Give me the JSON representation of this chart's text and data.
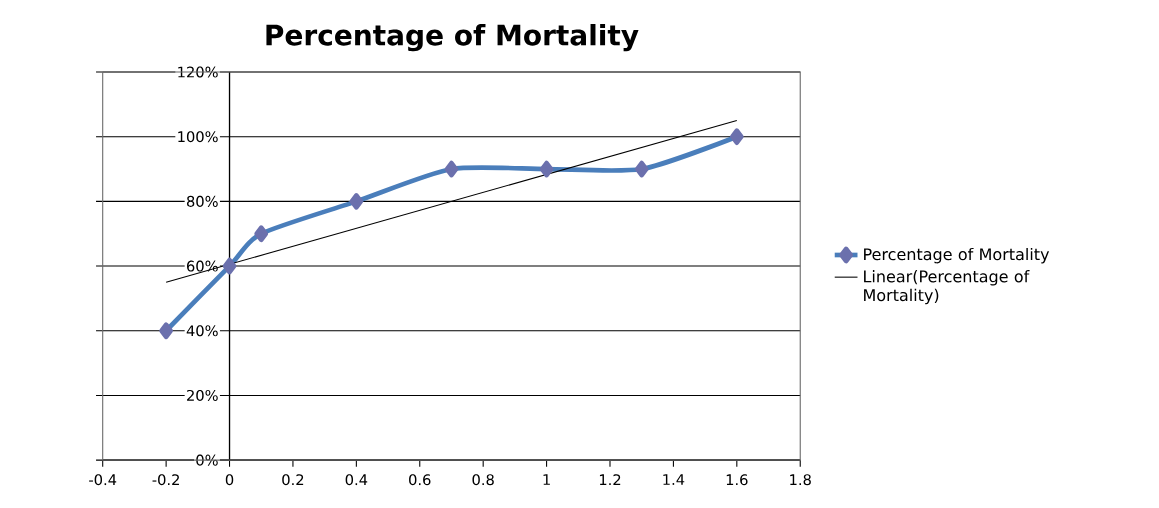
{
  "chart_data": {
    "type": "line",
    "title": "Percentage of Mortality",
    "x": [
      -0.2,
      0,
      0.1,
      0.4,
      0.7,
      1,
      1.3,
      1.6
    ],
    "series": [
      {
        "name": "Percentage of Mortality",
        "color": "#4a7ebb",
        "values": [
          40,
          60,
          70,
          80,
          90,
          90,
          90,
          100
        ]
      },
      {
        "name": "Linear(Percentage of Mortality)",
        "type": "line",
        "color": "#000000",
        "marker": "none",
        "x": [
          -0.2,
          1.6
        ],
        "values": [
          55,
          105
        ]
      }
    ],
    "xlim": [
      -0.4,
      1.8
    ],
    "xticks": [
      -0.4,
      -0.2,
      0,
      0.2,
      0.4,
      0.6,
      0.8,
      1,
      1.2,
      1.4,
      1.6,
      1.8
    ],
    "ylim": [
      0,
      120
    ],
    "yticks": [
      {
        "value": 0,
        "label": "0%"
      },
      {
        "value": 20,
        "label": "20%"
      },
      {
        "value": 40,
        "label": "40%"
      },
      {
        "value": 60,
        "label": "60%"
      },
      {
        "value": 80,
        "label": "80%"
      },
      {
        "value": 100,
        "label": "100%"
      },
      {
        "value": 120,
        "label": "120%"
      }
    ],
    "grid": "y",
    "legend": "right",
    "marker": "diamond"
  }
}
